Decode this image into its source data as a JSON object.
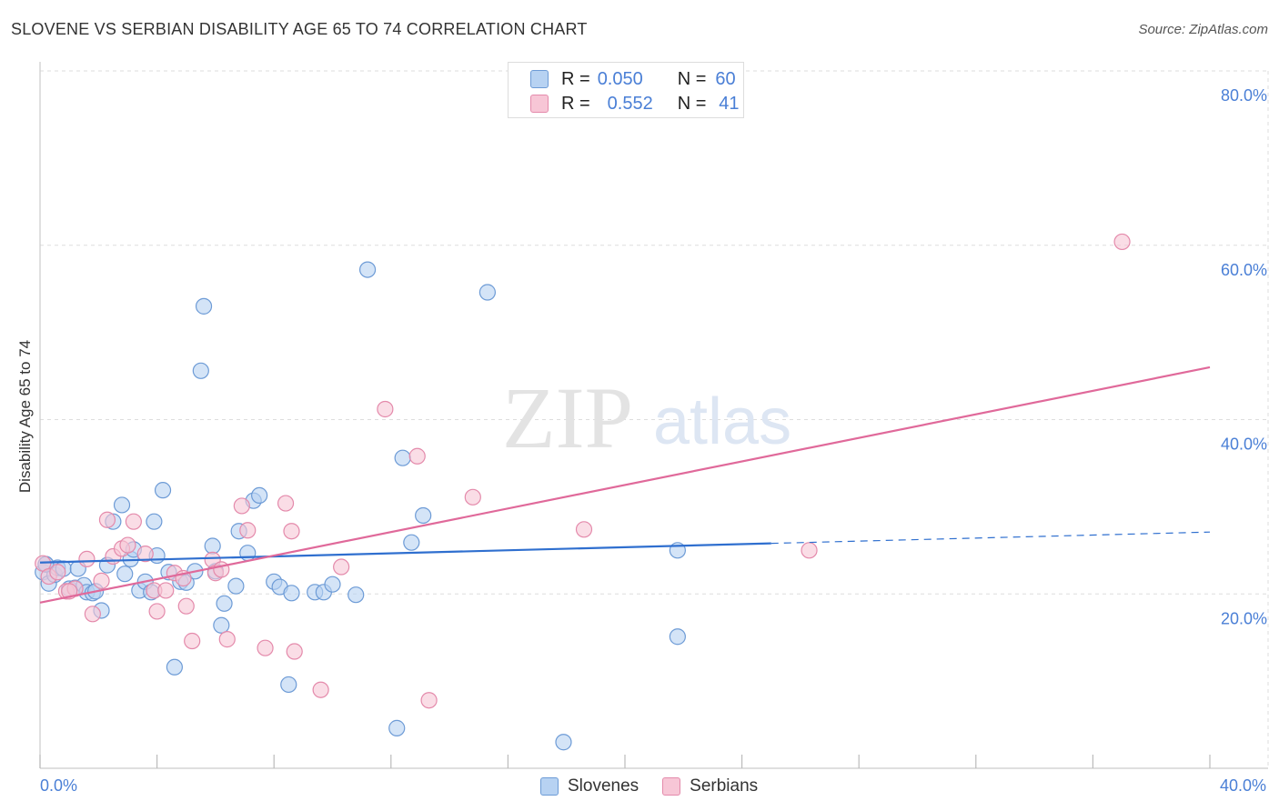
{
  "title": "SLOVENE VS SERBIAN DISABILITY AGE 65 TO 74 CORRELATION CHART",
  "source": "Source: ZipAtlas.com",
  "watermark": {
    "zip": "ZIP",
    "atlas": "atlas"
  },
  "legend": {
    "r_label": "R =",
    "n_label": "N =",
    "items": [
      {
        "name": "Slovenes",
        "r": "0.050",
        "n": "60"
      },
      {
        "name": "Serbians",
        "r": "0.552",
        "n": "41"
      }
    ]
  },
  "colors": {
    "blue_fill": "#b7d2f2",
    "blue_stroke": "#6d9bd6",
    "blue_line": "#2f6fcf",
    "pink_fill": "#f7c6d6",
    "pink_stroke": "#e48aab",
    "pink_line": "#e0699a",
    "grid": "#dddddd",
    "tick_text": "#4a7fd6"
  },
  "chart_data": {
    "type": "scatter",
    "title": "SLOVENE VS SERBIAN DISABILITY AGE 65 TO 74 CORRELATION CHART",
    "xlabel": "",
    "ylabel": "Disability Age 65 to 74",
    "xlim": [
      0,
      40
    ],
    "ylim": [
      0,
      80
    ],
    "x_tick_labels": [
      {
        "value": 0,
        "label": "0.0%"
      },
      {
        "value": 40,
        "label": "40.0%"
      }
    ],
    "y_tick_labels": [
      {
        "value": 20,
        "label": "20.0%"
      },
      {
        "value": 40,
        "label": "40.0%"
      },
      {
        "value": 60,
        "label": "60.0%"
      },
      {
        "value": 80,
        "label": "80.0%"
      }
    ],
    "series": [
      {
        "name": "Slovenes",
        "color": "#b7d2f2",
        "trend": {
          "x0": 0,
          "y0": 23.6,
          "x1": 25,
          "y1": 25.8,
          "dash_to_x": 40,
          "dash_to_y": 27.1
        },
        "points": [
          [
            0.1,
            22.5
          ],
          [
            0.2,
            23.4
          ],
          [
            0.3,
            21.2
          ],
          [
            0.5,
            22.2
          ],
          [
            0.6,
            23.0
          ],
          [
            0.8,
            22.9
          ],
          [
            1.0,
            20.6
          ],
          [
            1.2,
            20.7
          ],
          [
            1.3,
            22.9
          ],
          [
            1.5,
            21.0
          ],
          [
            1.6,
            20.2
          ],
          [
            1.8,
            20.1
          ],
          [
            1.9,
            20.3
          ],
          [
            2.1,
            18.1
          ],
          [
            2.3,
            23.3
          ],
          [
            2.5,
            28.3
          ],
          [
            2.8,
            30.2
          ],
          [
            2.9,
            22.3
          ],
          [
            3.1,
            24.0
          ],
          [
            3.2,
            25.1
          ],
          [
            3.4,
            20.4
          ],
          [
            3.6,
            21.4
          ],
          [
            3.8,
            20.2
          ],
          [
            3.9,
            28.3
          ],
          [
            4.0,
            24.4
          ],
          [
            4.2,
            31.9
          ],
          [
            4.4,
            22.5
          ],
          [
            4.6,
            11.6
          ],
          [
            4.8,
            21.4
          ],
          [
            5.0,
            21.3
          ],
          [
            5.3,
            22.6
          ],
          [
            5.5,
            45.6
          ],
          [
            5.6,
            53.0
          ],
          [
            5.9,
            25.5
          ],
          [
            6.0,
            22.6
          ],
          [
            6.2,
            16.4
          ],
          [
            6.3,
            18.9
          ],
          [
            6.7,
            20.9
          ],
          [
            6.8,
            27.2
          ],
          [
            7.1,
            24.7
          ],
          [
            7.3,
            30.7
          ],
          [
            7.5,
            31.3
          ],
          [
            8.0,
            21.4
          ],
          [
            8.2,
            20.8
          ],
          [
            8.5,
            9.6
          ],
          [
            8.6,
            20.1
          ],
          [
            9.4,
            20.2
          ],
          [
            9.7,
            20.2
          ],
          [
            10.0,
            21.1
          ],
          [
            10.8,
            19.9
          ],
          [
            11.2,
            57.2
          ],
          [
            12.2,
            4.6
          ],
          [
            12.4,
            35.6
          ],
          [
            12.7,
            25.9
          ],
          [
            13.1,
            29.0
          ],
          [
            15.3,
            54.6
          ],
          [
            17.9,
            3.0
          ],
          [
            21.8,
            15.1
          ],
          [
            21.8,
            25.0
          ],
          [
            0.2,
            23.4
          ]
        ]
      },
      {
        "name": "Serbians",
        "color": "#f7c6d6",
        "trend": {
          "x0": 0,
          "y0": 19.0,
          "x1": 40,
          "y1": 46.0
        },
        "points": [
          [
            0.1,
            23.5
          ],
          [
            0.3,
            22.0
          ],
          [
            0.6,
            22.5
          ],
          [
            0.9,
            20.3
          ],
          [
            1.2,
            20.6
          ],
          [
            1.6,
            24.0
          ],
          [
            1.8,
            17.7
          ],
          [
            2.1,
            21.5
          ],
          [
            2.3,
            28.5
          ],
          [
            2.5,
            24.3
          ],
          [
            2.8,
            25.2
          ],
          [
            3.0,
            25.6
          ],
          [
            3.2,
            28.3
          ],
          [
            3.6,
            24.6
          ],
          [
            3.9,
            20.4
          ],
          [
            4.0,
            18.0
          ],
          [
            4.3,
            20.4
          ],
          [
            4.6,
            22.4
          ],
          [
            4.9,
            21.8
          ],
          [
            5.0,
            18.6
          ],
          [
            5.2,
            14.6
          ],
          [
            5.9,
            23.9
          ],
          [
            6.0,
            22.4
          ],
          [
            6.2,
            22.8
          ],
          [
            6.4,
            14.8
          ],
          [
            6.9,
            30.1
          ],
          [
            7.1,
            27.3
          ],
          [
            7.7,
            13.8
          ],
          [
            8.4,
            30.4
          ],
          [
            8.6,
            27.2
          ],
          [
            8.7,
            13.4
          ],
          [
            9.6,
            9.0
          ],
          [
            10.3,
            23.1
          ],
          [
            11.8,
            41.2
          ],
          [
            12.9,
            35.8
          ],
          [
            13.3,
            7.8
          ],
          [
            14.8,
            31.1
          ],
          [
            18.6,
            27.4
          ],
          [
            26.3,
            25.0
          ],
          [
            37.0,
            60.4
          ],
          [
            1.0,
            20.3
          ]
        ]
      }
    ]
  }
}
